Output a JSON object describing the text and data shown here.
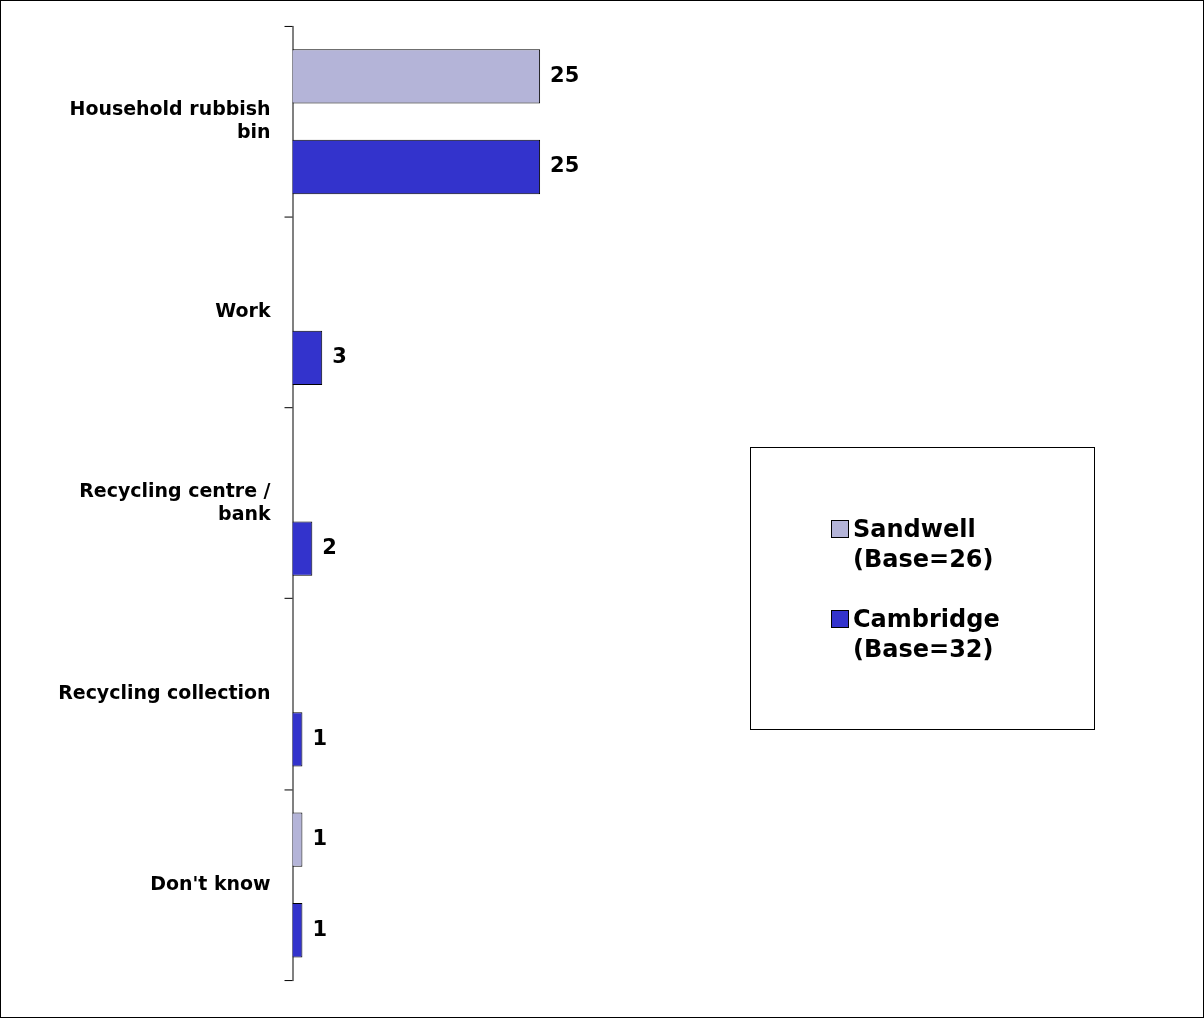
{
  "chart_data": {
    "type": "bar",
    "orientation": "horizontal",
    "categories": [
      "Household rubbish bin",
      "Work",
      "Recycling centre / bank",
      "Recycling collection",
      "Don't know"
    ],
    "series": [
      {
        "name": "Sandwell (Base=26)",
        "color": "#b4b4d8",
        "values": [
          25,
          null,
          null,
          null,
          1
        ]
      },
      {
        "name": "Cambridge (Base=32)",
        "color": "#3333cc",
        "values": [
          25,
          3,
          2,
          1,
          1
        ]
      }
    ],
    "tick_labels": "y",
    "data_labels": true,
    "grid": false,
    "legend": "right"
  }
}
